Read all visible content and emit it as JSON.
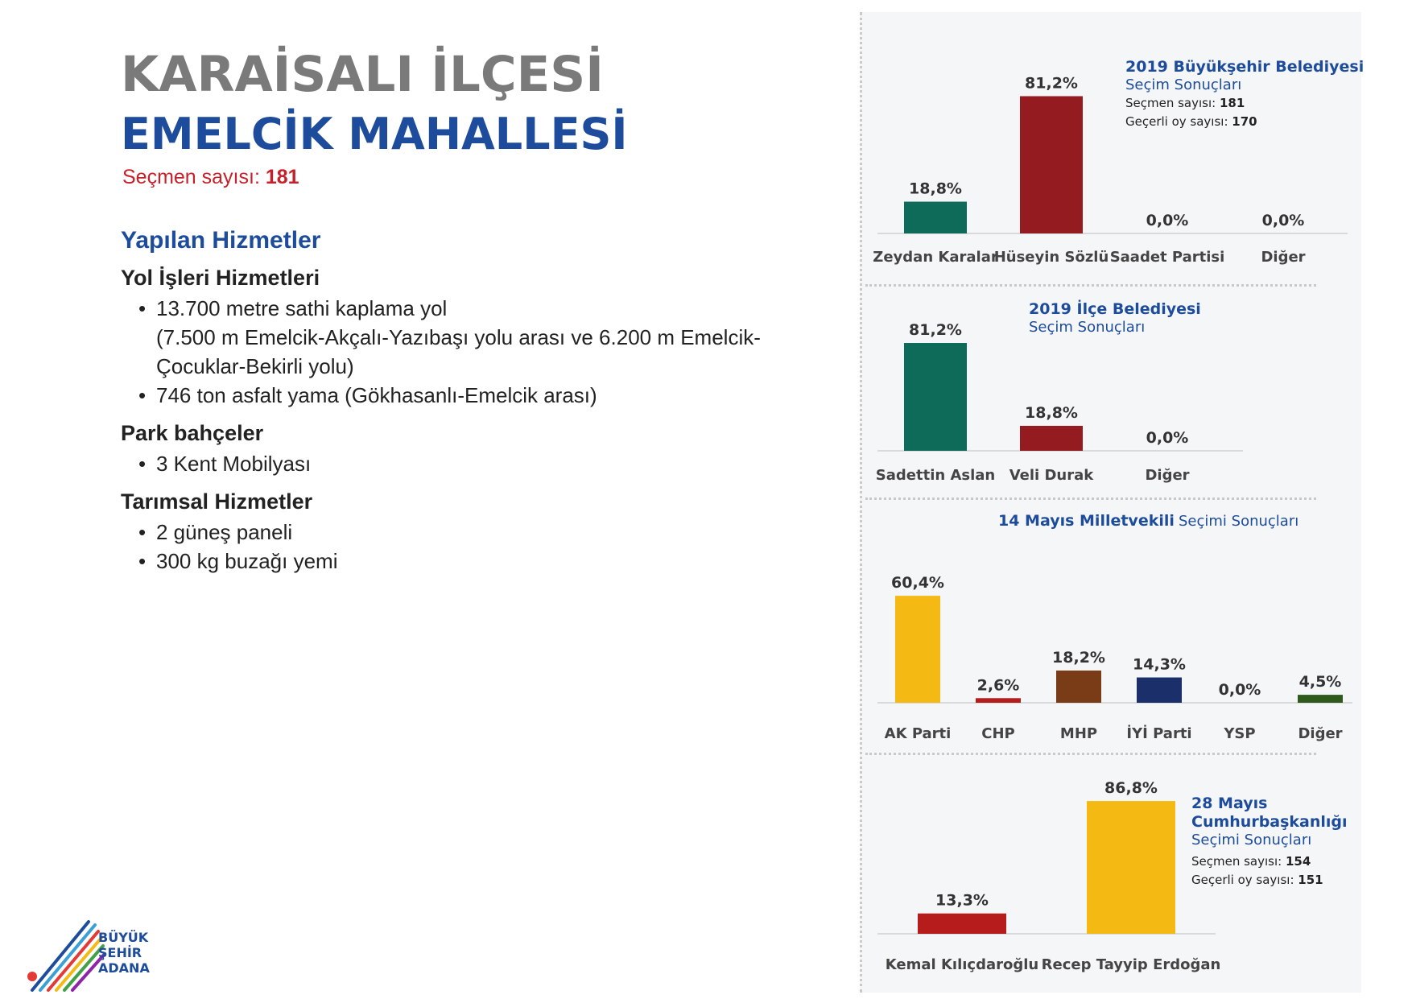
{
  "header": {
    "title_line1": "KARAİSALI İLÇESİ",
    "title_line2": "EMELCİK MAHALLESİ",
    "voters_label": "Seçmen sayısı:",
    "voters_value": "181"
  },
  "services": {
    "heading": "Yapılan Hizmetler",
    "groups": [
      {
        "title": "Yol İşleri Hizmetleri",
        "items": [
          "13.700 metre sathi kaplama yol",
          "(7.500 m Emelcik-Akçalı-Yazıbaşı yolu arası ve 6.200 m Emelcik-Çocuklar-Bekirli yolu)",
          "746 ton asfalt yama (Gökhasanlı-Emelcik arası)"
        ]
      },
      {
        "title": "Park bahçeler",
        "items": [
          "3 Kent Mobilyası"
        ]
      },
      {
        "title": "Tarımsal Hizmetler",
        "items": [
          "2 güneş paneli",
          "300 kg buzağı yemi"
        ]
      }
    ]
  },
  "logo": {
    "line1": "BÜYÜK",
    "line2": "ŞEHİR",
    "line3": "ADANA"
  },
  "chart_data": [
    {
      "type": "bar",
      "title": "2019 Büyükşehir Belediyesi",
      "subtitle": "Seçim Sonuçları",
      "meta": [
        {
          "label": "Seçmen sayısı:",
          "value": "181"
        },
        {
          "label": "Geçerli oy sayısı:",
          "value": "170"
        }
      ],
      "categories": [
        "Zeydan Karalar",
        "Hüseyin Sözlü",
        "Saadet Partisi",
        "Diğer"
      ],
      "values": [
        18.8,
        81.2,
        0.0,
        0.0
      ],
      "labels": [
        "18,8%",
        "81,2%",
        "0,0%",
        "0,0%"
      ],
      "colors": [
        "#0e6b5a",
        "#941b1f",
        "#941b1f",
        "#941b1f"
      ]
    },
    {
      "type": "bar",
      "title": "2019 İlçe Belediyesi",
      "subtitle": "Seçim Sonuçları",
      "categories": [
        "Sadettin Aslan",
        "Veli Durak",
        "Diğer"
      ],
      "values": [
        81.2,
        18.8,
        0.0
      ],
      "labels": [
        "81,2%",
        "18,8%",
        "0,0%"
      ],
      "colors": [
        "#0e6b5a",
        "#941b1f",
        "#941b1f"
      ]
    },
    {
      "type": "bar",
      "title": "14 Mayıs Milletvekili",
      "subtitle": "Seçimi Sonuçları",
      "categories": [
        "AK Parti",
        "CHP",
        "MHP",
        "İYİ Parti",
        "YSP",
        "Diğer"
      ],
      "values": [
        60.4,
        2.6,
        18.2,
        14.3,
        0.0,
        4.5
      ],
      "labels": [
        "60,4%",
        "2,6%",
        "18,2%",
        "14,3%",
        "0,0%",
        "4,5%"
      ],
      "colors": [
        "#f5b914",
        "#b71c1c",
        "#7a3b17",
        "#1b2f6b",
        "#888888",
        "#2e5a1e"
      ]
    },
    {
      "type": "bar",
      "title": "28 Mayıs Cumhurbaşkanlığı",
      "subtitle": "Seçimi Sonuçları",
      "meta": [
        {
          "label": "Seçmen sayısı:",
          "value": "154"
        },
        {
          "label": "Geçerli oy sayısı:",
          "value": "151"
        }
      ],
      "categories": [
        "Kemal Kılıçdaroğlu",
        "Recep Tayyip Erdoğan"
      ],
      "values": [
        13.3,
        86.8
      ],
      "labels": [
        "13,3%",
        "86,8%"
      ],
      "colors": [
        "#b71c1c",
        "#f5b914"
      ]
    }
  ]
}
